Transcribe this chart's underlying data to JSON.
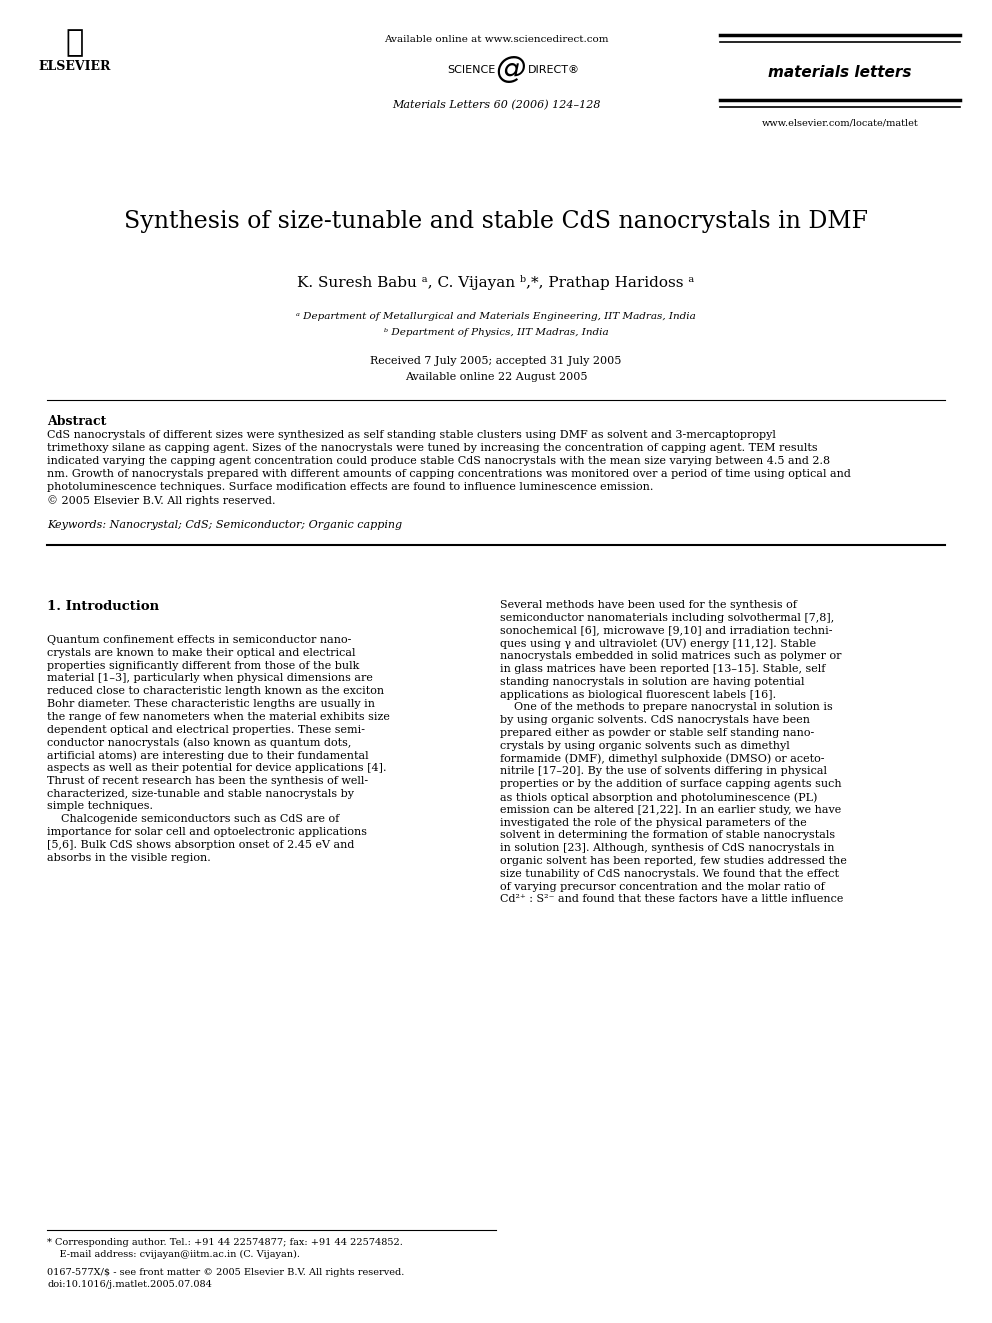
{
  "bg_color": "#ffffff",
  "title": "Synthesis of size-tunable and stable CdS nanocrystals in DMF",
  "authors": "K. Suresh Babu ᵃ, C. Vijayan ᵇ,*, Prathap Haridoss ᵃ",
  "affil_a": "ᵃ Department of Metallurgical and Materials Engineering, IIT Madras, India",
  "affil_b": "ᵇ Department of Physics, IIT Madras, India",
  "received": "Received 7 July 2005; accepted 31 July 2005",
  "available": "Available online 22 August 2005",
  "journal_header": "materials letters",
  "journal_info": "Materials Letters 60 (2006) 124–128",
  "available_online": "Available online at www.sciencedirect.com",
  "journal_url": "www.elsevier.com/locate/matlet",
  "abstract_title": "Abstract",
  "abstract_text": "CdS nanocrystals of different sizes were synthesized as self standing stable clusters using DMF as solvent and 3-mercaptopropyl trimethoxy silane as capping agent. Sizes of the nanocrystals were tuned by increasing the concentration of capping agent. TEM results indicated varying the capping agent concentration could produce stable CdS nanocrystals with the mean size varying between 4.5 and 2.8 nm. Growth of nanocrystals prepared with different amounts of capping concentrations was monitored over a period of time using optical and photoluminescence techniques. Surface modification effects are found to influence luminescence emission.\n© 2005 Elsevier B.V. All rights reserved.",
  "keywords": "Keywords: Nanocrystal; CdS; Semiconductor; Organic capping",
  "intro_title": "1. Introduction",
  "intro_col1": "Quantum confinement effects in semiconductor nano-crystals are known to make their optical and electrical properties significantly different from those of the bulk material [1–3], particularly when physical dimensions are reduced close to characteristic length known as the exciton Bohr diameter. These characteristic lengths are usually in the range of few nanometers when the material exhibits size dependent optical and electrical properties. These semi-conductor nanocrystals (also known as quantum dots, artificial atoms) are interesting due to their fundamental aspects as well as their potential for device applications [4]. Thrust of recent research has been the synthesis of well-characterized, size-tunable and stable nanocrystals by simple techniques.\n    Chalcogenide semiconductors such as CdS are of importance for solar cell and optoelectronic applications [5,6]. Bulk CdS shows absorption onset of 2.45 eV and absorbs in the visible region.",
  "intro_col2": "Several methods have been used for the synthesis of semiconductor nanomaterials including solvothermal [7,8], sonochemical [6], microwave [9,10] and irradiation techniques using γ and ultraviolet (UV) energy [11,12]. Stable nanocrystals embedded in solid matrices such as polymer or in glass matrices have been reported [13–15]. Stable, self standing nanocrystals in solution are having potential applications as biological fluorescent labels [16].\n    One of the methods to prepare nanocrystal in solution is by using organic solvents. CdS nanocrystals have been prepared either as powder or stable self standing nano-crystals by using organic solvents such as dimethyl formamide (DMF), dimethyl sulphoxide (DMSO) or aceto-nitrile [17–20]. By the use of solvents differing in physical properties or by the addition of surface capping agents such as thiols optical absorption and photoluminescence (PL) emission can be altered [21,22]. In an earlier study, we have investigated the role of the physical parameters of the solvent in determining the formation of stable nanocrystals in solution [23]. Although, synthesis of CdS nanocrystals in organic solvent has been reported, few studies addressed the size tunability of CdS nanocrystals. We found that the effect of varying precursor concentration and the molar ratio of Cd²⁺ : S²⁻ and found that these factors have a little influence",
  "footer_left": "* Corresponding author. Tel.: +91 44 22574877; fax: +91 44 22574852.\n    E-mail address: cvijayan@iitm.ac.in (C. Vijayan).",
  "footer_issn": "0167-577X/$ - see front matter © 2005 Elsevier B.V. All rights reserved.\ndoi:10.1016/j.matlet.2005.07.084",
  "text_color": "#000000",
  "link_color": "#0000cc"
}
